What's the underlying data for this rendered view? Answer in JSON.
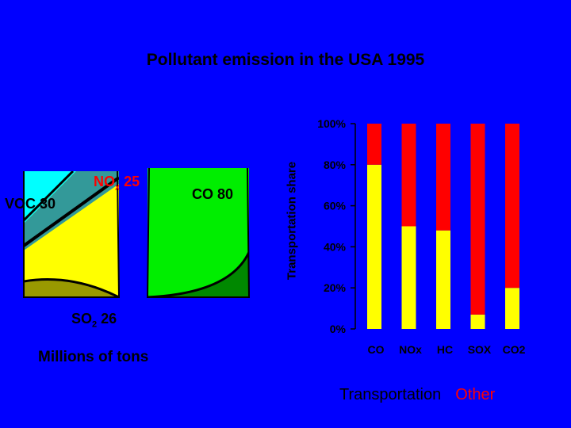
{
  "title": "Pollutant emission in the USA 1995",
  "left_panel": {
    "voc_label": "VOC 30",
    "nox_label": "NOx 25",
    "nox_base": "NO",
    "nox_sub": "x",
    "nox_value": "25",
    "co_label": "CO 80",
    "so2_label": "SO2 26",
    "so2_base": "SO",
    "so2_sub": "2",
    "so2_value": "26",
    "unit_label": "Millions of tons"
  },
  "legend": {
    "transportation": "Transportation",
    "other": "Other"
  },
  "colors": {
    "background": "#0000ff",
    "transportation": "#ffff00",
    "other": "#ff0000",
    "cyan": "#00ffff",
    "teal": "#339999",
    "green": "#00ee00",
    "dark_green": "#008800"
  },
  "chart_data": {
    "type": "bar",
    "stacked": true,
    "categories": [
      "CO",
      "NOx",
      "HC",
      "SOX",
      "CO2"
    ],
    "series": [
      {
        "name": "Transportation",
        "color": "#ffff00",
        "values": [
          80,
          50,
          48,
          7,
          20
        ]
      },
      {
        "name": "Other",
        "color": "#ff0000",
        "values": [
          20,
          50,
          52,
          93,
          80
        ]
      }
    ],
    "ylabel": "Transportation share",
    "ylim": [
      0,
      100
    ],
    "yticks": [
      "0%",
      "20%",
      "40%",
      "60%",
      "80%",
      "100%"
    ],
    "grid": false
  }
}
